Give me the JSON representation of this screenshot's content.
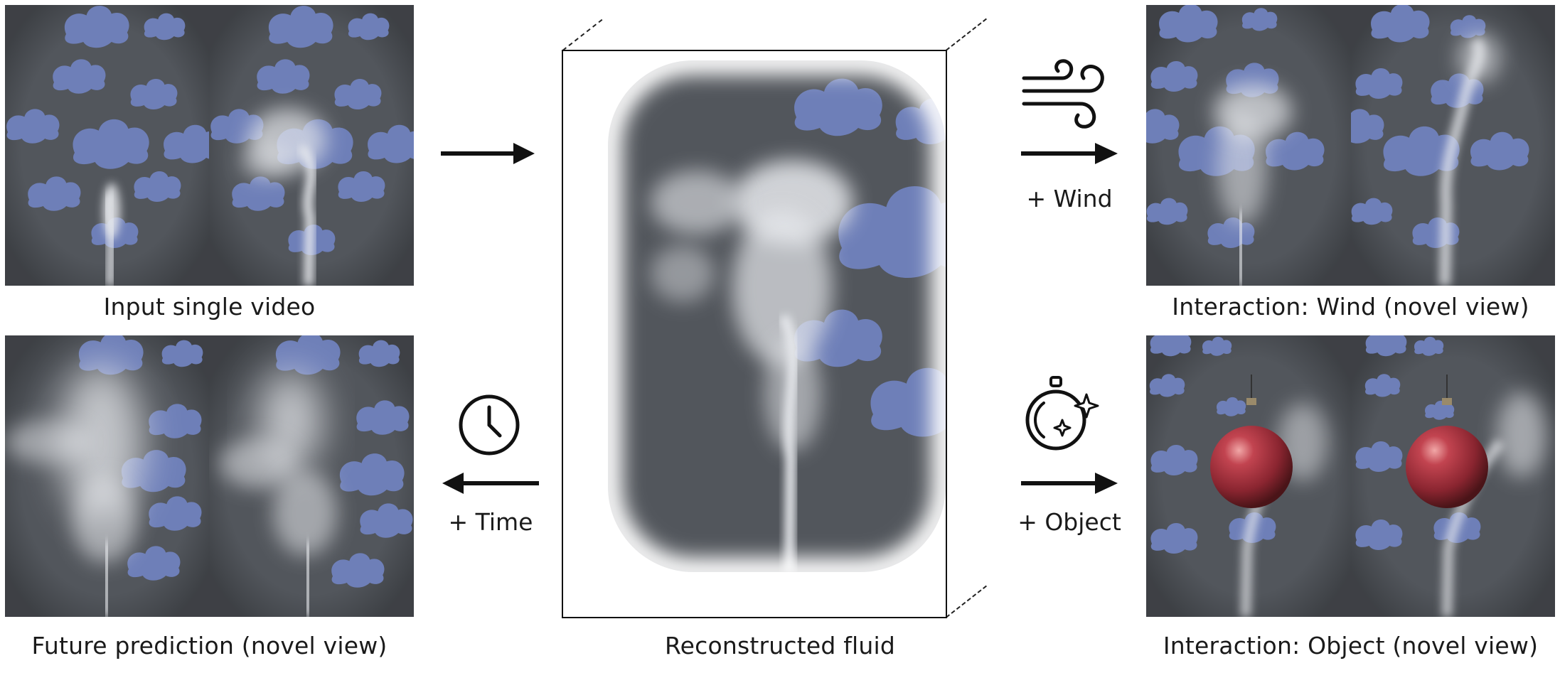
{
  "captions": {
    "input": "Input single video",
    "future": "Future prediction (novel view)",
    "reconstructed": "Reconstructed fluid",
    "wind_view": "Interaction: Wind (novel view)",
    "object_view": "Interaction: Object (novel view)"
  },
  "operations": {
    "wind": "+ Wind",
    "time": "+ Time",
    "object": "+ Object"
  },
  "icons": {
    "wind": "wind-icon",
    "time": "clock-icon",
    "object": "ornament-sparkle-icon"
  },
  "colors": {
    "background_cloth": "#52565c",
    "cloud": "#6e7fb8",
    "smoke": "#e6e8ec",
    "ornament": "#a8303a"
  }
}
